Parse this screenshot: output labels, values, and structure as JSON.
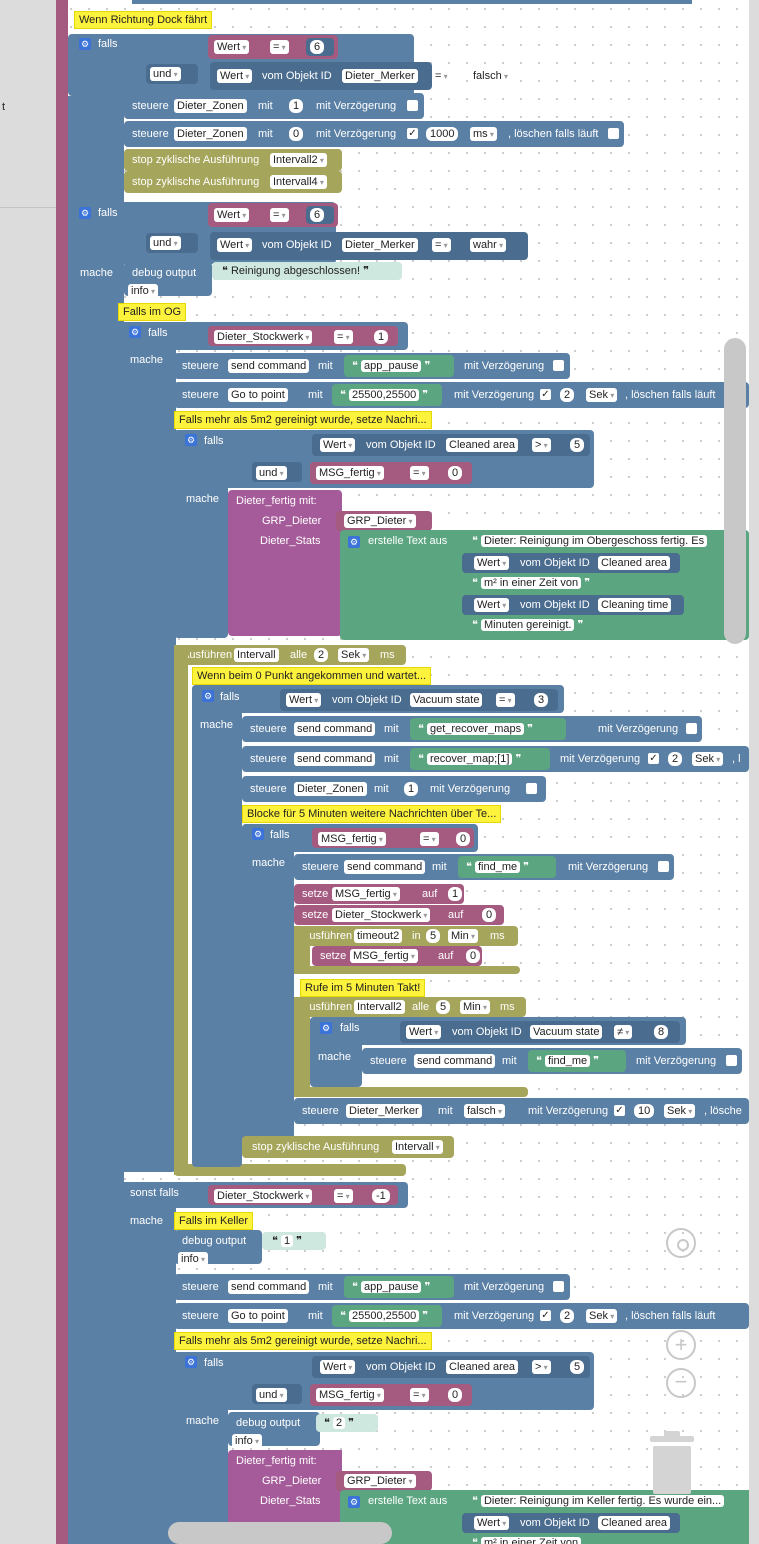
{
  "sidebar": {
    "partial_text": "t"
  },
  "blocks": {
    "c_dock": "Wenn Richtung Dock fährt",
    "falls": "falls",
    "und": "und",
    "mache": "mache",
    "sonst_falls": "sonst falls",
    "wert": "Wert",
    "eq": "=",
    "neq": "≠",
    "gt": ">",
    "vom_objekt": "vom Objekt ID",
    "dieter_merker": "Dieter_Merker",
    "falsch": "falsch",
    "wahr": "wahr",
    "six": "6",
    "steuere": "steuere",
    "mit": "mit",
    "mit_verz": "mit Verzögerung",
    "dieter_zonen": "Dieter_Zonen",
    "one": "1",
    "zero": "0",
    "v1000": "1000",
    "ms": "ms",
    "loeschen": ", löschen falls läuft",
    "stop_zyk": "stop zyklische Ausführung",
    "intervall2": "Intervall2",
    "intervall4": "Intervall4",
    "debug_output": "debug output",
    "reinigung_abg": "Reinigung abgeschlossen!",
    "info": "info",
    "c_og": "Falls im OG",
    "dieter_stockwerk": "Dieter_Stockwerk",
    "send_command": "send command",
    "app_pause": "app_pause",
    "go_to_point": "Go to point",
    "coords": "25500,25500",
    "two": "2",
    "sek": "Sek",
    "c_5m2": "Falls mehr als 5m2 gereinigt wurde, setze Nachri...",
    "cleaned_area": "Cleaned area",
    "five": "5",
    "msg_fertig": "MSG_fertig",
    "dieter_fertig_mit": "Dieter_fertig  mit:",
    "grp_dieter_l": "GRP_Dieter",
    "grp_dieter": "GRP_Dieter",
    "dieter_stats": "Dieter_Stats",
    "erstelle_text": "erstelle Text aus",
    "txt_og": "Dieter: Reinigung im Obergeschoss fertig. Es",
    "m2_zeit": "m² in einer Zeit von",
    "cleaning_time": "Cleaning time",
    "minuten_ger": "Minuten gereinigt.",
    "ausfuehren": "Ausführen",
    "intervall": "Intervall",
    "alle": "alle",
    "c_0punkt": "Wenn beim 0 Punkt angekommen und wartet...",
    "vacuum_state": "Vacuum state",
    "three": "3",
    "get_recover_maps": "get_recover_maps",
    "recover_map": "recover_map;[1]",
    "c_blocke": "Blocke für 5 Minuten weitere Nachrichten über Te...",
    "find_me": "find_me",
    "setze": "setze",
    "auf": "auf",
    "timeout2": "timeout2",
    "in": "in",
    "min": "Min",
    "c_5takt": "Rufe im 5 Minuten Takt!",
    "eight": "8",
    "ten": "10",
    "loeschen_short": ", lösche",
    "minus1": "-1",
    "c_keller": "Falls im Keller",
    "txt_keller": "Dieter: Reinigung im Keller fertig. Es wurde ein...",
    "cut_l": ", l",
    "cut_lo": ", lö"
  },
  "colors": {
    "logic": "#5b80a5",
    "timer": "#a5a55b",
    "function": "#a55b99",
    "text": "#5ba580",
    "variable": "#a55b80",
    "comment": "#fdf33c"
  },
  "icons": [
    "gear-icon",
    "locate-icon",
    "zoom-in-icon",
    "zoom-out-icon",
    "trash-icon"
  ]
}
